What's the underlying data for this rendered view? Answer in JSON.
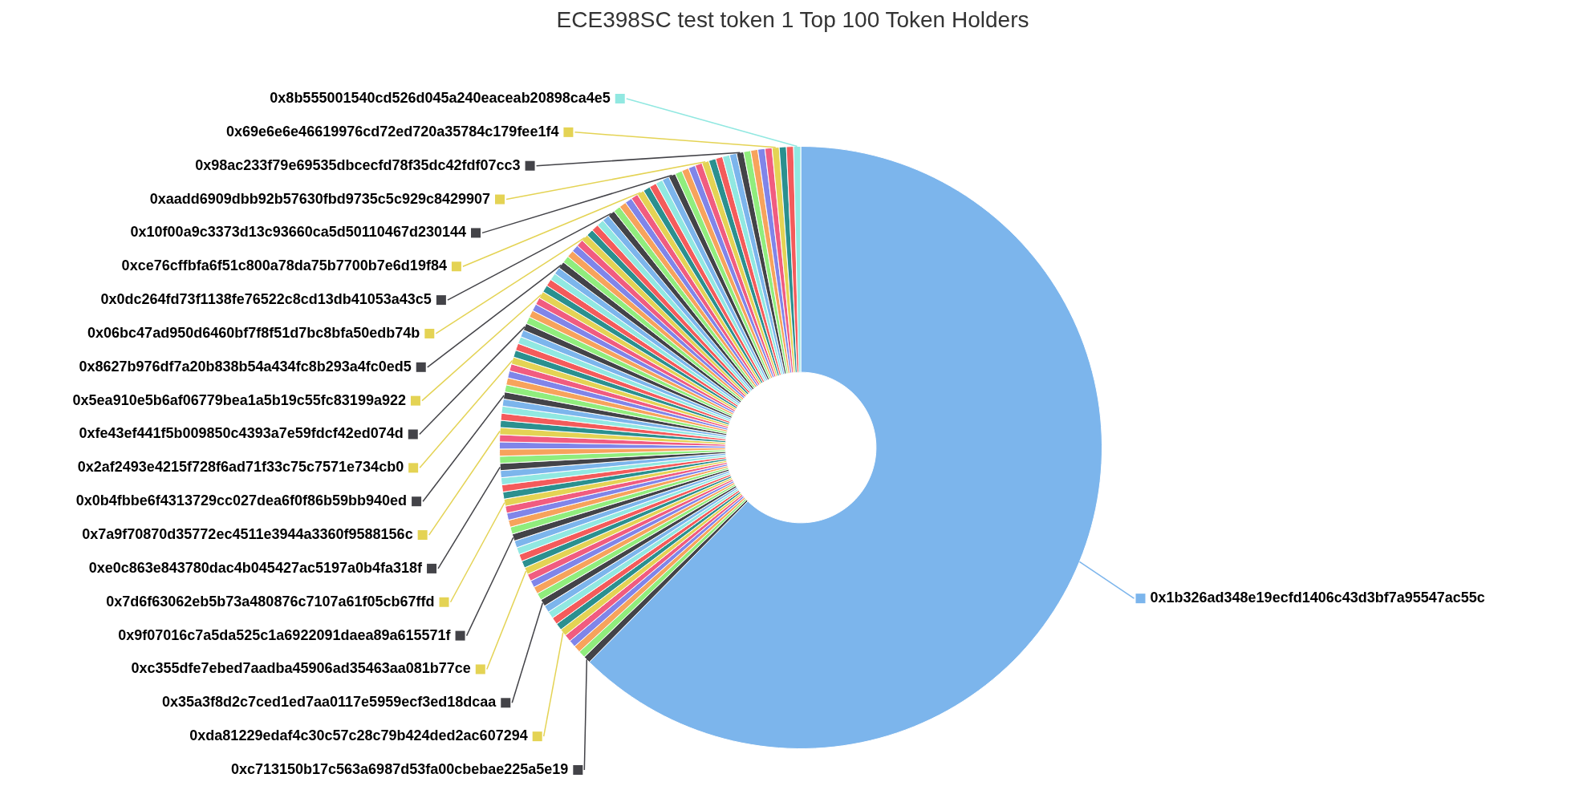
{
  "chart_data": {
    "type": "donut",
    "title": "ECE398SC test token 1 Top 100 Token Holders",
    "legend": "left",
    "categories": [
      "0x1b326ad348e19ecfd1406c43d3bf7a95547ac55c",
      "0xc713150b17c563a6987d53fa00cbebae225a5e19",
      null,
      null,
      null,
      null,
      "0xda81229edaf4c30c57c28c79b424ded2ac607294",
      null,
      null,
      null,
      null,
      "0x35a3f8d2c7ced1ed7aa0117e5959ecf3ed18dcaa",
      null,
      null,
      null,
      null,
      "0xc355dfe7ebed7aadba45906ad35463aa081b77ce",
      null,
      null,
      null,
      null,
      "0x9f07016c7a5da525c1a6922091daea89a615571f",
      null,
      null,
      null,
      null,
      "0x7d6f63062eb5b73a480876c7107a61f05cb67ffd",
      null,
      null,
      null,
      null,
      "0xe0c863e843780dac4b045427ac5197a0b4fa318f",
      null,
      null,
      null,
      null,
      "0x7a9f70870d35772ec4511e3944a3360f9588156c",
      null,
      null,
      null,
      null,
      "0x0b4fbbe6f4313729cc027dea6f0f86b59bb940ed",
      null,
      null,
      null,
      null,
      "0x2af2493e4215f728f6ad71f33c75c7571e734cb0",
      null,
      null,
      null,
      null,
      "0xfe43ef441f5b009850c4393a7e59fdcf42ed074d",
      null,
      null,
      null,
      null,
      "0x5ea910e5b6af06779bea1a5b19c55fc83199a922",
      null,
      null,
      null,
      null,
      "0x8627b976df7a20b838b54a434fc8b293a4fc0ed5",
      null,
      null,
      null,
      null,
      "0x06bc47ad950d6460bf7f8f51d7bc8bfa50edb74b",
      null,
      null,
      null,
      null,
      "0x0dc264fd73f1138fe76522c8cd13db41053a43c5",
      null,
      null,
      null,
      null,
      "0xce76cffbfa6f51c800a78da75b7700b7e6d19f84",
      null,
      null,
      null,
      null,
      "0x10f00a9c3373d13c93660ca5d50110467d230144",
      null,
      null,
      null,
      null,
      "0xaadd6909dbb92b57630fbd9735c5c929c8429907",
      null,
      null,
      null,
      null,
      "0x98ac233f79e69535dbcecfd78f35dc42fdf07cc3",
      null,
      null,
      null,
      null,
      "0x69e6e6e46619976cd72ed720a35784c179fee1f4",
      null,
      null,
      "0x8b555001540cd526d045a240eaceab20898ca4e5"
    ],
    "values": [
      62.38,
      0.38,
      0.38,
      0.38,
      0.38,
      0.38,
      0.38,
      0.38,
      0.38,
      0.38,
      0.38,
      0.38,
      0.38,
      0.38,
      0.38,
      0.38,
      0.38,
      0.38,
      0.38,
      0.38,
      0.38,
      0.38,
      0.38,
      0.38,
      0.38,
      0.38,
      0.38,
      0.38,
      0.38,
      0.38,
      0.38,
      0.38,
      0.38,
      0.38,
      0.38,
      0.38,
      0.38,
      0.38,
      0.38,
      0.38,
      0.38,
      0.38,
      0.38,
      0.38,
      0.38,
      0.38,
      0.38,
      0.38,
      0.38,
      0.38,
      0.38,
      0.38,
      0.38,
      0.38,
      0.38,
      0.38,
      0.38,
      0.38,
      0.38,
      0.38,
      0.38,
      0.38,
      0.38,
      0.38,
      0.38,
      0.38,
      0.38,
      0.38,
      0.38,
      0.38,
      0.38,
      0.38,
      0.38,
      0.38,
      0.38,
      0.38,
      0.38,
      0.38,
      0.38,
      0.38,
      0.38,
      0.38,
      0.38,
      0.38,
      0.38,
      0.38,
      0.38,
      0.38,
      0.38,
      0.38,
      0.38,
      0.38,
      0.38,
      0.38,
      0.38,
      0.38,
      0.38,
      0.38,
      0.38,
      0.38
    ],
    "colors": [
      "#7cb5ec",
      "#434348",
      "#90ed7d",
      "#f7a35c",
      "#8085e9",
      "#f15c80",
      "#e4d354",
      "#2b908f",
      "#f45b5b",
      "#91e8e1",
      "#7cb5ec",
      "#434348",
      "#90ed7d",
      "#f7a35c",
      "#8085e9",
      "#f15c80",
      "#e4d354",
      "#2b908f",
      "#f45b5b",
      "#91e8e1",
      "#7cb5ec",
      "#434348",
      "#90ed7d",
      "#f7a35c",
      "#8085e9",
      "#f15c80",
      "#e4d354",
      "#2b908f",
      "#f45b5b",
      "#91e8e1",
      "#7cb5ec",
      "#434348",
      "#90ed7d",
      "#f7a35c",
      "#8085e9",
      "#f15c80",
      "#e4d354",
      "#2b908f",
      "#f45b5b",
      "#91e8e1",
      "#7cb5ec",
      "#434348",
      "#90ed7d",
      "#f7a35c",
      "#8085e9",
      "#f15c80",
      "#e4d354",
      "#2b908f",
      "#f45b5b",
      "#91e8e1",
      "#7cb5ec",
      "#434348",
      "#90ed7d",
      "#f7a35c",
      "#8085e9",
      "#f15c80",
      "#e4d354",
      "#2b908f",
      "#f45b5b",
      "#91e8e1",
      "#7cb5ec",
      "#434348",
      "#90ed7d",
      "#f7a35c",
      "#8085e9",
      "#f15c80",
      "#e4d354",
      "#2b908f",
      "#f45b5b",
      "#91e8e1",
      "#7cb5ec",
      "#434348",
      "#90ed7d",
      "#f7a35c",
      "#8085e9",
      "#f15c80",
      "#e4d354",
      "#2b908f",
      "#f45b5b",
      "#91e8e1",
      "#7cb5ec",
      "#434348",
      "#90ed7d",
      "#f7a35c",
      "#8085e9",
      "#f15c80",
      "#e4d354",
      "#2b908f",
      "#f45b5b",
      "#91e8e1",
      "#7cb5ec",
      "#434348",
      "#90ed7d",
      "#f7a35c",
      "#8085e9",
      "#f15c80",
      "#e4d354",
      "#2b908f",
      "#f45b5b",
      "#91e8e1"
    ]
  }
}
